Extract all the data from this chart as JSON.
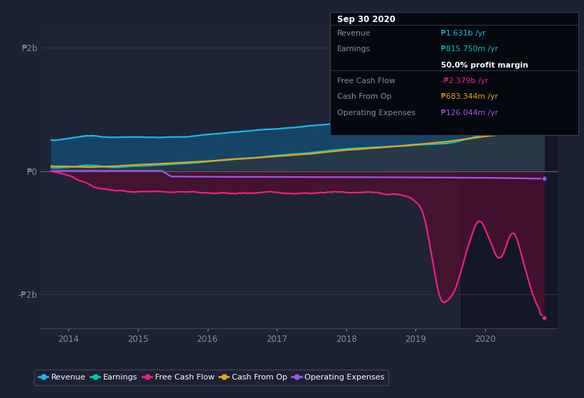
{
  "bg_color": "#1c2133",
  "plot_bg_color": "#1e2435",
  "ylabel_2b": "₱2b",
  "ylabel_neg2b": "-₱2b",
  "ylabel_0": "₱0",
  "colors": {
    "revenue": "#1ab8e8",
    "earnings": "#00c9b1",
    "free_cash_flow": "#e8208a",
    "cash_from_op": "#e8a020",
    "operating_expenses": "#9b59e8"
  },
  "legend_labels": [
    "Revenue",
    "Earnings",
    "Free Cash Flow",
    "Cash From Op",
    "Operating Expenses"
  ],
  "ann_title": "Sep 30 2020",
  "ann_rows": [
    {
      "label": "Revenue",
      "value": "₱1.631b /yr",
      "vcolor": "#1ab8e8"
    },
    {
      "label": "Earnings",
      "value": "₱815.750m /yr",
      "vcolor": "#00c9b1"
    },
    {
      "label": "",
      "value": "50.0% profit margin",
      "vcolor": "#ffffff",
      "bold": true
    },
    {
      "label": "Free Cash Flow",
      "value": "-₱2.379b /yr",
      "vcolor": "#e8208a"
    },
    {
      "label": "Cash From Op",
      "value": "₱683.344m /yr",
      "vcolor": "#e8a020"
    },
    {
      "label": "Operating Expenses",
      "value": "₱126.044m /yr",
      "vcolor": "#9b59e8"
    }
  ]
}
